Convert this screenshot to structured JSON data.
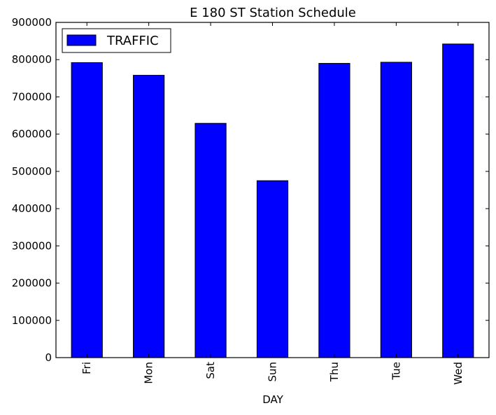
{
  "chart_data": {
    "type": "bar",
    "title": "E 180 ST Station Schedule",
    "xlabel": "DAY",
    "ylabel": "",
    "categories": [
      "Fri",
      "Mon",
      "Sat",
      "Sun",
      "Thu",
      "Tue",
      "Wed"
    ],
    "series": [
      {
        "name": "TRAFFIC",
        "color": "#0000ff",
        "values": [
          792000,
          758000,
          629000,
          475000,
          790000,
          793000,
          842000
        ]
      }
    ],
    "ylim": [
      0,
      900000
    ],
    "yticks": [
      0,
      100000,
      200000,
      300000,
      400000,
      500000,
      600000,
      700000,
      800000,
      900000
    ],
    "ytick_labels": [
      "0",
      "100000",
      "200000",
      "300000",
      "400000",
      "500000",
      "600000",
      "700000",
      "800000",
      "900000"
    ],
    "xtick_rotation": "vertical",
    "legend_position": "top-left",
    "grid": false
  }
}
